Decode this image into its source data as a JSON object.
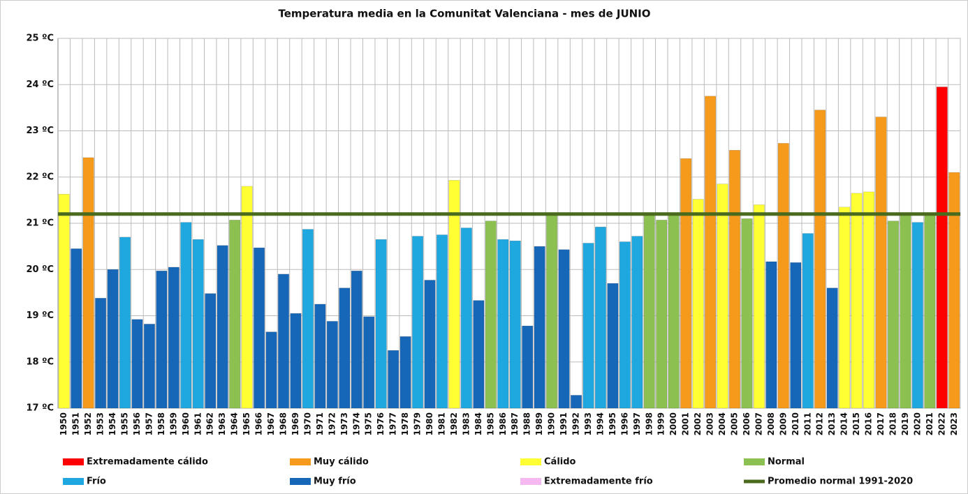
{
  "chart_data": {
    "type": "bar",
    "title": "Temperatura media en la Comunitat Valenciana - mes de JUNIO",
    "categories": [
      "1950",
      "1951",
      "1952",
      "1953",
      "1954",
      "1955",
      "1956",
      "1957",
      "1958",
      "1959",
      "1960",
      "1961",
      "1962",
      "1963",
      "1964",
      "1965",
      "1966",
      "1967",
      "1968",
      "1969",
      "1970",
      "1971",
      "1972",
      "1973",
      "1974",
      "1975",
      "1976",
      "1977",
      "1978",
      "1979",
      "1980",
      "1981",
      "1982",
      "1983",
      "1984",
      "1985",
      "1986",
      "1987",
      "1988",
      "1989",
      "1990",
      "1991",
      "1992",
      "1993",
      "1994",
      "1995",
      "1996",
      "1997",
      "1998",
      "1999",
      "2000",
      "2001",
      "2002",
      "2003",
      "2004",
      "2005",
      "2006",
      "2007",
      "2008",
      "2009",
      "2010",
      "2011",
      "2012",
      "2013",
      "2014",
      "2015",
      "2016",
      "2017",
      "2018",
      "2019",
      "2020",
      "2021",
      "2022",
      "2023"
    ],
    "values": [
      21.63,
      20.45,
      22.42,
      19.38,
      20.0,
      20.7,
      18.92,
      18.82,
      19.97,
      20.05,
      21.02,
      20.65,
      19.48,
      20.52,
      21.07,
      21.8,
      20.47,
      18.65,
      19.9,
      19.05,
      20.87,
      19.25,
      18.88,
      19.6,
      19.97,
      18.98,
      20.65,
      18.25,
      18.55,
      20.72,
      19.77,
      20.75,
      21.93,
      20.9,
      19.33,
      21.05,
      20.65,
      20.62,
      18.78,
      20.5,
      21.2,
      20.43,
      17.28,
      20.57,
      20.92,
      19.7,
      20.6,
      20.72,
      21.18,
      21.07,
      21.18,
      22.4,
      21.52,
      23.75,
      21.85,
      22.58,
      21.1,
      21.4,
      20.17,
      22.73,
      20.15,
      20.78,
      23.45,
      19.6,
      21.35,
      21.65,
      21.68,
      23.3,
      21.05,
      21.2,
      21.02,
      21.2,
      23.95,
      22.1
    ],
    "colors": [
      "#ffff33",
      "#1767b8",
      "#f59a1a",
      "#1767b8",
      "#1767b8",
      "#1fa8e0",
      "#1767b8",
      "#1767b8",
      "#1767b8",
      "#1767b8",
      "#1fa8e0",
      "#1fa8e0",
      "#1767b8",
      "#1767b8",
      "#8cc152",
      "#ffff33",
      "#1767b8",
      "#1767b8",
      "#1767b8",
      "#1767b8",
      "#1fa8e0",
      "#1767b8",
      "#1767b8",
      "#1767b8",
      "#1767b8",
      "#1767b8",
      "#1fa8e0",
      "#1767b8",
      "#1767b8",
      "#1fa8e0",
      "#1767b8",
      "#1fa8e0",
      "#ffff33",
      "#1fa8e0",
      "#1767b8",
      "#8cc152",
      "#1fa8e0",
      "#1fa8e0",
      "#1767b8",
      "#1767b8",
      "#8cc152",
      "#1767b8",
      "#1767b8",
      "#1fa8e0",
      "#1fa8e0",
      "#1767b8",
      "#1fa8e0",
      "#1fa8e0",
      "#8cc152",
      "#8cc152",
      "#8cc152",
      "#f59a1a",
      "#ffff33",
      "#f59a1a",
      "#ffff33",
      "#f59a1a",
      "#8cc152",
      "#ffff33",
      "#1767b8",
      "#f59a1a",
      "#1767b8",
      "#1fa8e0",
      "#f59a1a",
      "#1767b8",
      "#ffff33",
      "#ffff33",
      "#ffff33",
      "#f59a1a",
      "#8cc152",
      "#8cc152",
      "#1fa8e0",
      "#8cc152",
      "#ff0000",
      "#f59a1a"
    ],
    "ylim": [
      17,
      25
    ],
    "yticks": [
      {
        "value": 17,
        "label": "17 ºC"
      },
      {
        "value": 18,
        "label": "18 ºC"
      },
      {
        "value": 19,
        "label": "19 ºC"
      },
      {
        "value": 20,
        "label": "20 ºC"
      },
      {
        "value": 21,
        "label": "21 ºC"
      },
      {
        "value": 22,
        "label": "22 ºC"
      },
      {
        "value": 23,
        "label": "23 ºC"
      },
      {
        "value": 24,
        "label": "24 ºC"
      },
      {
        "value": 25,
        "label": "25 ºC"
      }
    ],
    "grid": true,
    "legend": [
      {
        "name": "Extremadamente cálido",
        "color": "#ff0000"
      },
      {
        "name": "Muy cálido",
        "color": "#f59a1a"
      },
      {
        "name": "Cálido",
        "color": "#ffff33"
      },
      {
        "name": "Normal",
        "color": "#8cc152"
      },
      {
        "name": "Frío",
        "color": "#1fa8e0"
      },
      {
        "name": "Muy frío",
        "color": "#1767b8"
      },
      {
        "name": "Extremadamente frío",
        "color": "#f5b8f0"
      }
    ],
    "reference_line": {
      "name": "Promedio normal 1991-2020",
      "value": 21.2,
      "color": "#4a6b1e"
    }
  }
}
